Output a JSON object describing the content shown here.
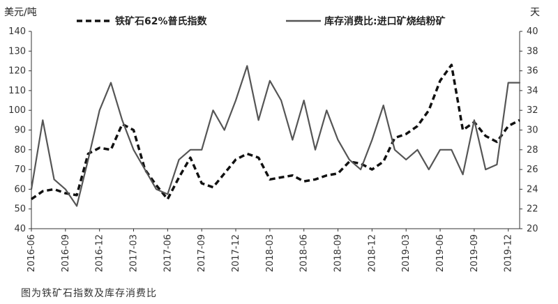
{
  "chart_data": {
    "type": "line",
    "caption": "图为铁矿石指数及库存消费比",
    "left_axis": {
      "unit_label": "美元/吨",
      "range": [
        40,
        140
      ],
      "ticks": [
        40,
        50,
        60,
        70,
        80,
        90,
        100,
        110,
        120,
        130,
        140
      ]
    },
    "right_axis": {
      "unit_label": "天",
      "range": [
        20,
        40
      ],
      "ticks": [
        20,
        22,
        24,
        26,
        28,
        30,
        32,
        34,
        36,
        38,
        40
      ]
    },
    "x_axis": {
      "range": [
        "2016-06",
        "2020-01"
      ],
      "tick_labels": [
        "2016-06",
        "2016-09",
        "2016-12",
        "2017-03",
        "2017-06",
        "2017-09",
        "2017-12",
        "2018-03",
        "2018-06",
        "2018-09",
        "2018-12",
        "2019-03",
        "2019-06",
        "2019-09",
        "2019-12"
      ]
    },
    "grid": false,
    "series": [
      {
        "name": "铁矿石62%普氏指数",
        "axis": "left",
        "style": "dashed",
        "color": "#111111",
        "points": [
          [
            "2016-06",
            55
          ],
          [
            "2016-07",
            59
          ],
          [
            "2016-08",
            60
          ],
          [
            "2016-09",
            58
          ],
          [
            "2016-10",
            57
          ],
          [
            "2016-11",
            78
          ],
          [
            "2016-12",
            81
          ],
          [
            "2017-01",
            80
          ],
          [
            "2017-02",
            93
          ],
          [
            "2017-03",
            90
          ],
          [
            "2017-04",
            70
          ],
          [
            "2017-05",
            62
          ],
          [
            "2017-06",
            55
          ],
          [
            "2017-07",
            66
          ],
          [
            "2017-08",
            76
          ],
          [
            "2017-09",
            63
          ],
          [
            "2017-10",
            61
          ],
          [
            "2017-11",
            68
          ],
          [
            "2017-12",
            75
          ],
          [
            "2018-01",
            78
          ],
          [
            "2018-02",
            76
          ],
          [
            "2018-03",
            65
          ],
          [
            "2018-04",
            66
          ],
          [
            "2018-05",
            67
          ],
          [
            "2018-06",
            64
          ],
          [
            "2018-07",
            65
          ],
          [
            "2018-08",
            67
          ],
          [
            "2018-09",
            68
          ],
          [
            "2018-10",
            74
          ],
          [
            "2018-11",
            73
          ],
          [
            "2018-12",
            70
          ],
          [
            "2019-01",
            74
          ],
          [
            "2019-02",
            86
          ],
          [
            "2019-03",
            88
          ],
          [
            "2019-04",
            92
          ],
          [
            "2019-05",
            100
          ],
          [
            "2019-06",
            115
          ],
          [
            "2019-07",
            123
          ],
          [
            "2019-08",
            90
          ],
          [
            "2019-09",
            94
          ],
          [
            "2019-10",
            87
          ],
          [
            "2019-11",
            84
          ],
          [
            "2019-12",
            92
          ],
          [
            "2020-01",
            95
          ]
        ]
      },
      {
        "name": "库存消费比:进口矿烧结粉矿",
        "axis": "right",
        "style": "solid",
        "color": "#555555",
        "points": [
          [
            "2016-06",
            24
          ],
          [
            "2016-07",
            31
          ],
          [
            "2016-08",
            25
          ],
          [
            "2016-09",
            24
          ],
          [
            "2016-10",
            22.3
          ],
          [
            "2016-11",
            27
          ],
          [
            "2016-12",
            32
          ],
          [
            "2017-01",
            34.8
          ],
          [
            "2017-02",
            31
          ],
          [
            "2017-03",
            28
          ],
          [
            "2017-04",
            26
          ],
          [
            "2017-05",
            24
          ],
          [
            "2017-06",
            23.5
          ],
          [
            "2017-07",
            27
          ],
          [
            "2017-08",
            28
          ],
          [
            "2017-09",
            28
          ],
          [
            "2017-10",
            32
          ],
          [
            "2017-11",
            30
          ],
          [
            "2017-12",
            33
          ],
          [
            "2018-01",
            36.5
          ],
          [
            "2018-02",
            31
          ],
          [
            "2018-03",
            35
          ],
          [
            "2018-04",
            33
          ],
          [
            "2018-05",
            29
          ],
          [
            "2018-06",
            33
          ],
          [
            "2018-07",
            28
          ],
          [
            "2018-08",
            32
          ],
          [
            "2018-09",
            29
          ],
          [
            "2018-10",
            27
          ],
          [
            "2018-11",
            26
          ],
          [
            "2018-12",
            29
          ],
          [
            "2019-01",
            32.5
          ],
          [
            "2019-02",
            28
          ],
          [
            "2019-03",
            27
          ],
          [
            "2019-04",
            28
          ],
          [
            "2019-05",
            26
          ],
          [
            "2019-06",
            28
          ],
          [
            "2019-07",
            28
          ],
          [
            "2019-08",
            25.5
          ],
          [
            "2019-09",
            31
          ],
          [
            "2019-10",
            26
          ],
          [
            "2019-11",
            26.5
          ],
          [
            "2019-12",
            34.8
          ],
          [
            "2020-01",
            34.8
          ]
        ]
      }
    ]
  }
}
